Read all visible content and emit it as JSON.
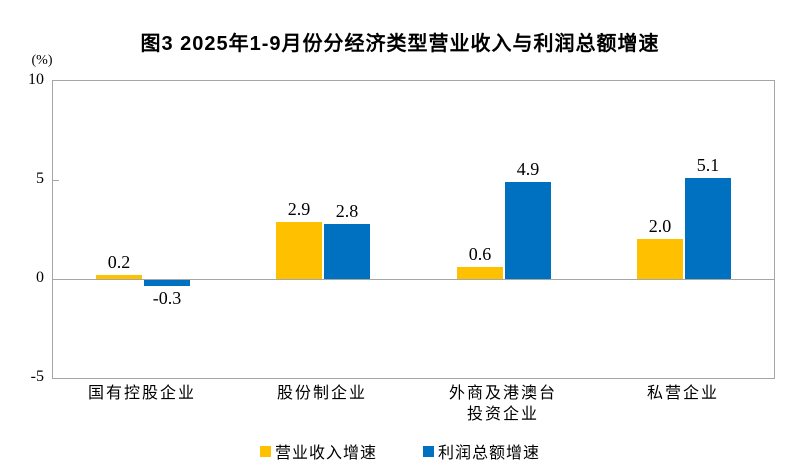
{
  "chart_data": {
    "type": "bar",
    "title": "图3 2025年1-9月份分经济类型营业收入与利润总额增速",
    "axis_unit": "(%)",
    "categories": [
      "国有控股企业",
      "股份制企业",
      "外商及港澳台\n投资企业",
      "私营企业"
    ],
    "series": [
      {
        "name": "营业收入增速",
        "color": "#FFC000",
        "values": [
          0.2,
          2.9,
          0.6,
          2.0
        ]
      },
      {
        "name": "利润总额增速",
        "color": "#0070C0",
        "values": [
          -0.3,
          2.8,
          4.9,
          5.1
        ]
      }
    ],
    "ylim": [
      -5,
      10
    ],
    "yticks": [
      10,
      5,
      0,
      -5
    ],
    "grid": false,
    "legend_position": "bottom",
    "value_label_decimals": 1
  },
  "colors": {
    "plot_border": "#a6a6a6",
    "zero_line": "#a6a6a6",
    "text": "#000000"
  }
}
